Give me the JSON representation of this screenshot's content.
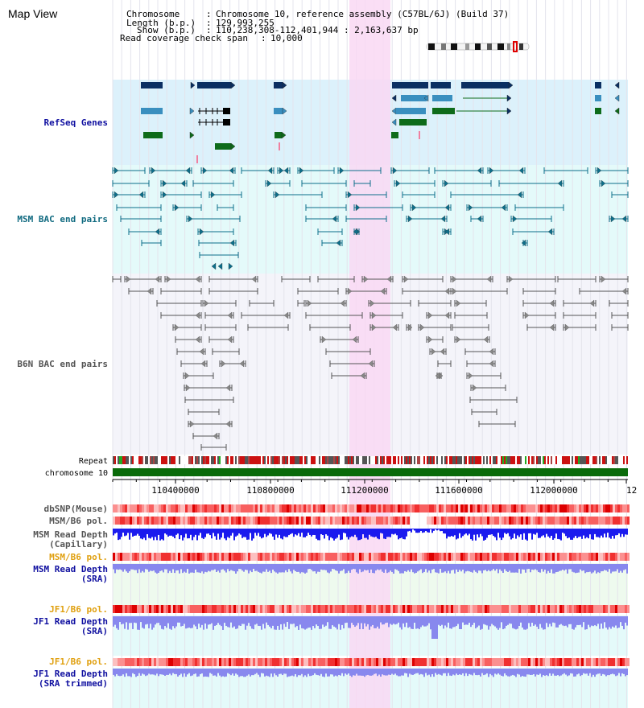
{
  "title": "Map View",
  "info": {
    "chromosome_label": "Chromosome",
    "chromosome_value": "Chromosome 10, reference assembly (C57BL/6J) (Build 37)",
    "length_label": "Length (b.p.)",
    "length_value": "129,993,255",
    "show_label": "Show (b.p.)",
    "show_value": "110,238,308-112,401,944 : 2,163,637 bp",
    "coverage_label": "Read coverage check span",
    "coverage_value": "10,000"
  },
  "tracks": {
    "refseq": "RefSeq Genes",
    "msm_bac": "MSM BAC end pairs",
    "b6n_bac": "B6N BAC end pairs",
    "repeat": "Repeat",
    "chromosome": "chromosome 10",
    "dbsnp": "dbSNP(Mouse)",
    "msm_b6_pol_1": "MSM/B6 pol.",
    "msm_read_depth_1": "MSM Read Depth",
    "msm_read_depth_1_sub": "(Capillary)",
    "msm_b6_pol_2": "MSM/B6 pol.",
    "msm_read_depth_2": "MSM Read Depth",
    "msm_read_depth_2_sub": "(SRA)",
    "jf1_b6_pol_1": "JF1/B6 pol.",
    "jf1_read_depth_1": "JF1 Read Depth",
    "jf1_read_depth_1_sub": "(SRA)",
    "jf1_b6_pol_2": "JF1/B6 pol.",
    "jf1_read_depth_2": "JF1 Read Depth",
    "jf1_read_depth_2_sub": "(SRA trimmed)"
  },
  "axis": {
    "ticks": [
      "110400000",
      "110800000",
      "111200000",
      "111600000",
      "112000000",
      "12"
    ]
  },
  "colors": {
    "refseq_bg": "#dcf1fb",
    "msm_bg": "#e4fafa",
    "b6n_bg": "#f4f4fa",
    "highlight": "#f9d8f3",
    "refseq_dark": "#0b2f62",
    "refseq_mid": "#3a8fbf",
    "refseq_green": "#0e6b1a",
    "msm_pair": "#0d6e8a",
    "b6n_pair": "#555555",
    "chrom_bar": "#0a6b0a",
    "depth_blue": "#1a1aee",
    "depth_lavender": "#8888ee",
    "label_blue": "#1010a0",
    "label_teal": "#106a80",
    "label_orange": "#e0a010"
  }
}
